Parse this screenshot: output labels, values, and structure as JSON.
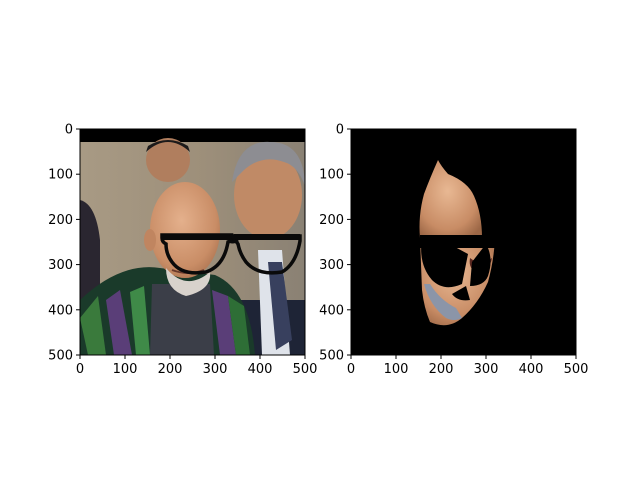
{
  "chart_data": [
    {
      "type": "image",
      "title": "",
      "xlabel": "",
      "ylabel": "",
      "xlim": [
        0,
        500
      ],
      "ylim": [
        500,
        0
      ],
      "x_ticks": [
        0,
        100,
        200,
        300,
        400,
        500
      ],
      "y_ticks": [
        0,
        100,
        200,
        300,
        400,
        500
      ],
      "y_inverted": true,
      "content": "photo-with-glasses-overlay"
    },
    {
      "type": "image",
      "title": "",
      "xlabel": "",
      "ylabel": "",
      "xlim": [
        0,
        500
      ],
      "ylim": [
        500,
        0
      ],
      "x_ticks": [
        0,
        100,
        200,
        300,
        400,
        500
      ],
      "y_ticks": [
        0,
        100,
        200,
        300,
        400,
        500
      ],
      "y_inverted": true,
      "content": "segmented-face-mask"
    }
  ],
  "colors": {
    "background": "#ffffff",
    "mask_background": "#000000",
    "skin": "#d7a07c",
    "glasses": "#0a0a0a"
  }
}
